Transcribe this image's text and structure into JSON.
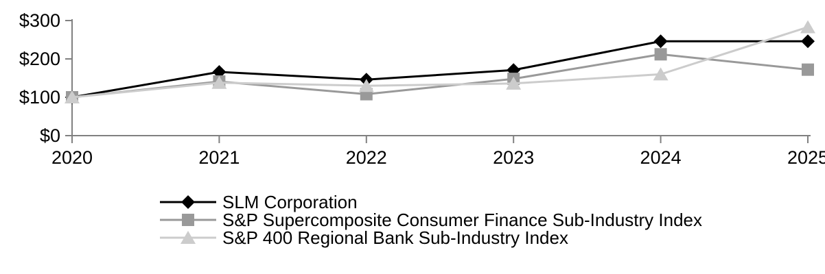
{
  "chart_data": {
    "type": "line",
    "title": "",
    "xlabel": "",
    "ylabel": "",
    "x_labels": [
      "2020",
      "2021",
      "2022",
      "2023",
      "2024",
      "2025"
    ],
    "y_ticks": [
      0,
      100,
      200,
      300
    ],
    "y_tick_labels": [
      "$0",
      "$100",
      "$200",
      "$300"
    ],
    "ylim": [
      0,
      300
    ],
    "grid": false,
    "legend_position": "bottom-left",
    "axis_color": "#808080",
    "series": [
      {
        "name": "SLM Corporation",
        "marker": "diamond",
        "color": "#000000",
        "values": [
          100,
          166,
          146,
          171,
          246,
          246
        ]
      },
      {
        "name": "S&P Supercomposite Consumer Finance Sub-Industry Index",
        "marker": "square",
        "color": "#999999",
        "values": [
          100,
          141,
          108,
          148,
          212,
          172
        ]
      },
      {
        "name": "S&P 400 Regional Bank Sub-Industry Index",
        "marker": "triangle",
        "color": "#cccccc",
        "values": [
          100,
          138,
          130,
          136,
          160,
          283
        ]
      }
    ]
  }
}
